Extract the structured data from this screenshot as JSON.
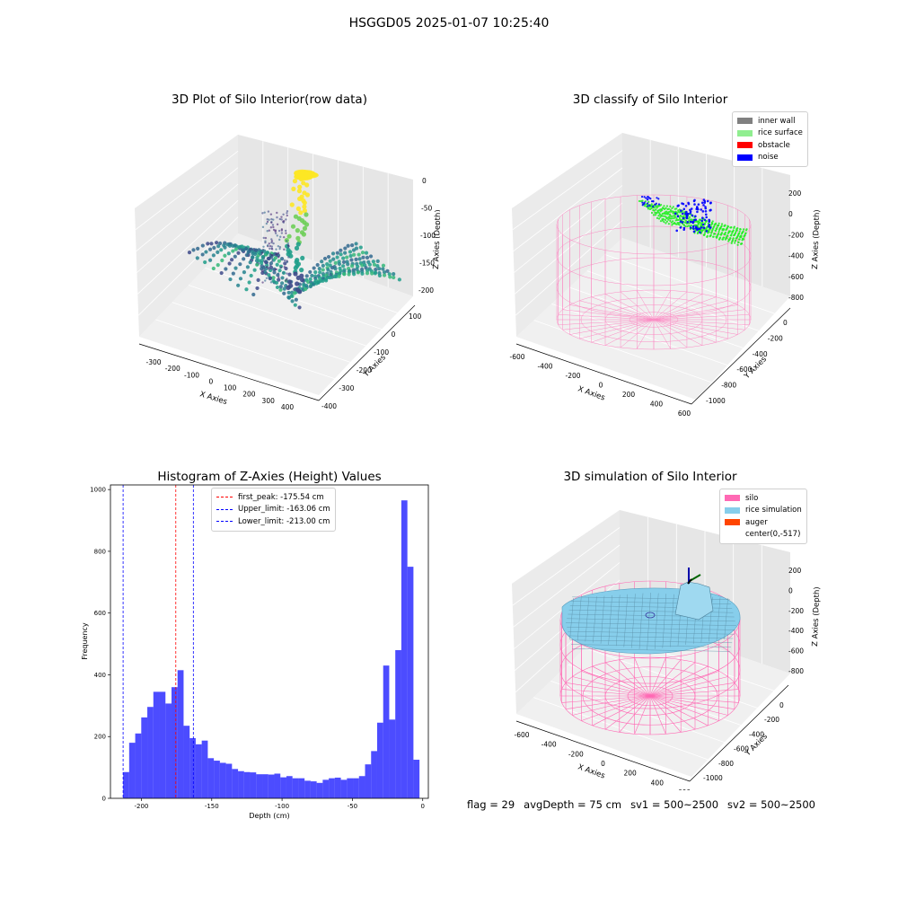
{
  "suptitle": "HSGGD05 2025-01-07 10:25:40",
  "panels": {
    "p1": {
      "title": "3D Plot of Silo Interior(row data)",
      "xlabel": "X Axies",
      "ylabel": "Y Axies",
      "zlabel": "Z Axies (Depth)",
      "xticks": [
        "-300",
        "-200",
        "-100",
        "0",
        "100",
        "200",
        "300",
        "400"
      ],
      "yticks": [
        "100",
        "0",
        "-100",
        "-200",
        "-300",
        "-400"
      ],
      "zticks": [
        "0",
        "-50",
        "-100",
        "-150",
        "-200"
      ]
    },
    "p2": {
      "title": "3D classify of Silo Interior",
      "xlabel": "X Axies",
      "ylabel": "Y Axies",
      "zlabel": "Z Axies (Depth)",
      "xticks": [
        "-600",
        "-400",
        "-200",
        "0",
        "200",
        "400",
        "600"
      ],
      "yticks": [
        "0",
        "-200",
        "-400",
        "-600",
        "-800",
        "-1000"
      ],
      "zticks": [
        "200",
        "0",
        "-200",
        "-400",
        "-600",
        "-800"
      ],
      "legend": [
        {
          "label": "inner wall",
          "color": "#808080"
        },
        {
          "label": "rice surface",
          "color": "#90ee90"
        },
        {
          "label": "obstacle",
          "color": "#ff0000"
        },
        {
          "label": "noise",
          "color": "#0000ff"
        }
      ]
    },
    "p3": {
      "title": "Histogram of Z-Axies (Height) Values",
      "xlabel": "Depth (cm)",
      "ylabel": "Frequency",
      "legend": [
        {
          "label": "first_peak: -175.54 cm",
          "color": "#ff0000"
        },
        {
          "label": "Upper_limit: -163.06 cm",
          "color": "#0000ff"
        },
        {
          "label": "Lower_limit: -213.00 cm",
          "color": "#0000ff"
        }
      ]
    },
    "p4": {
      "title": "3D simulation of Silo Interior",
      "xlabel": "X Axies",
      "ylabel": "Y Axies",
      "zlabel": "Z Axies (Depth)",
      "xticks": [
        "-600",
        "-400",
        "-200",
        "0",
        "200",
        "400",
        "600"
      ],
      "yticks": [
        "0",
        "-200",
        "-400",
        "-600",
        "-800",
        "-1000"
      ],
      "zticks": [
        "200",
        "0",
        "-200",
        "-400",
        "-600",
        "-800"
      ],
      "legend": [
        {
          "label": "silo",
          "color": "#ff69b4"
        },
        {
          "label": "rice simulation",
          "color": "#87ceeb"
        },
        {
          "label": "auger",
          "color": "#ff4500"
        },
        {
          "label": "center(0,-517)",
          "color": "#ffffff"
        }
      ]
    }
  },
  "status": {
    "flag": "flag = 29",
    "avg_depth": "avgDepth = 75 cm",
    "sv1": "sv1 = 500~2500",
    "sv2": "sv2 = 500~2500"
  },
  "chart_data": {
    "type": "bar",
    "title": "Histogram of Z-Axies (Height) Values",
    "xlabel": "Depth (cm)",
    "ylabel": "Frequency",
    "xlim": [
      -222,
      4
    ],
    "ylim": [
      0,
      1015
    ],
    "xticks": [
      -200,
      -150,
      -100,
      -50,
      0
    ],
    "yticks": [
      0,
      200,
      400,
      600,
      800,
      1000
    ],
    "bin_start": -213,
    "bin_width": 4.3,
    "values": [
      85,
      180,
      210,
      262,
      296,
      345,
      345,
      307,
      360,
      415,
      235,
      195,
      175,
      187,
      130,
      122,
      115,
      112,
      95,
      88,
      85,
      84,
      78,
      78,
      77,
      80,
      68,
      72,
      65,
      65,
      57,
      55,
      50,
      60,
      65,
      67,
      60,
      65,
      65,
      72,
      110,
      153,
      245,
      430,
      255,
      480,
      965,
      750,
      125
    ],
    "color": "#0000ff",
    "lines": [
      {
        "name": "first_peak",
        "x": -175.54,
        "color": "#ff0000"
      },
      {
        "name": "Upper_limit",
        "x": -163.06,
        "color": "#0000ff"
      },
      {
        "name": "Lower_limit",
        "x": -213.0,
        "color": "#0000ff"
      }
    ]
  }
}
